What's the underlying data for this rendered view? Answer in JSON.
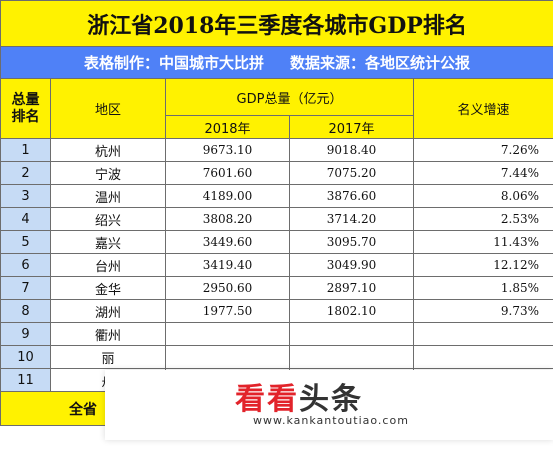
{
  "title": "浙江省2018年三季度各城市GDP排名",
  "subtitle": {
    "maker": "表格制作：中国城市大比拼",
    "source": "数据来源：各地区统计公报"
  },
  "headers": {
    "rank_line1": "总量",
    "rank_line2": "排名",
    "region": "地区",
    "gdp": "GDP总量（亿元）",
    "y2018": "2018年",
    "y2017": "2017年",
    "growth": "名义增速"
  },
  "rows": [
    {
      "rank": "1",
      "city": "杭州",
      "v2018": "9673.10",
      "v2017": "9018.40",
      "growth": "7.26%"
    },
    {
      "rank": "2",
      "city": "宁波",
      "v2018": "7601.60",
      "v2017": "7075.20",
      "growth": "7.44%"
    },
    {
      "rank": "3",
      "city": "温州",
      "v2018": "4189.00",
      "v2017": "3876.60",
      "growth": "8.06%"
    },
    {
      "rank": "4",
      "city": "绍兴",
      "v2018": "3808.20",
      "v2017": "3714.20",
      "growth": "2.53%"
    },
    {
      "rank": "5",
      "city": "嘉兴",
      "v2018": "3449.60",
      "v2017": "3095.70",
      "growth": "11.43%"
    },
    {
      "rank": "6",
      "city": "台州",
      "v2018": "3419.40",
      "v2017": "3049.90",
      "growth": "12.12%"
    },
    {
      "rank": "7",
      "city": "金华",
      "v2018": "2950.60",
      "v2017": "2897.10",
      "growth": "1.85%"
    },
    {
      "rank": "8",
      "city": "湖州",
      "v2018": "1977.50",
      "v2017": "1802.10",
      "growth": "9.73%"
    },
    {
      "rank": "9",
      "city": "衢州",
      "v2018": "",
      "v2017": "",
      "growth": ""
    },
    {
      "rank": "10",
      "city": "丽",
      "v2018": "",
      "v2017": "",
      "growth": ""
    },
    {
      "rank": "11",
      "city": "舟",
      "v2018": "",
      "v2017": "",
      "growth": ""
    }
  ],
  "total_label": "全省",
  "watermark": {
    "logo_red": "看看",
    "logo_dark": "头条",
    "url": "www.kankantoutiao.com"
  },
  "colors": {
    "header_yellow": "#fff200",
    "subtitle_blue": "#4f81f7",
    "rank_blue": "#c6dbf5",
    "watermark_red": "#e2232a"
  }
}
